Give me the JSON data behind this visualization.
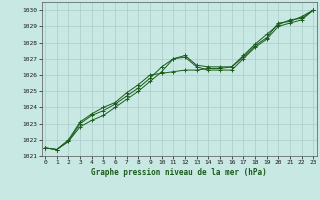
{
  "title": "Graphe pression niveau de la mer (hPa)",
  "background_color": "#c8e8e4",
  "plot_bg_color": "#c8e8e4",
  "grid_color": "#aaccc8",
  "line_color": "#1a5c1a",
  "marker_color": "#1a5c1a",
  "ylim": [
    1021,
    1030.5
  ],
  "xlim": [
    -0.3,
    23.3
  ],
  "yticks": [
    1021,
    1022,
    1023,
    1024,
    1025,
    1026,
    1027,
    1028,
    1029,
    1030
  ],
  "xticks": [
    0,
    1,
    2,
    3,
    4,
    5,
    6,
    7,
    8,
    9,
    10,
    11,
    12,
    13,
    14,
    15,
    16,
    17,
    18,
    19,
    20,
    21,
    22,
    23
  ],
  "series": [
    [
      1021.5,
      1021.4,
      1021.9,
      1022.8,
      1023.2,
      1023.5,
      1024.0,
      1024.5,
      1025.0,
      1025.6,
      1026.2,
      1027.0,
      1027.1,
      1026.5,
      1026.3,
      1026.3,
      1026.3,
      1027.0,
      1027.7,
      1028.2,
      1029.0,
      1029.2,
      1029.4,
      1030.0
    ],
    [
      1021.5,
      1021.4,
      1021.9,
      1023.0,
      1023.5,
      1023.8,
      1024.2,
      1024.7,
      1025.2,
      1025.8,
      1026.5,
      1027.0,
      1027.2,
      1026.6,
      1026.5,
      1026.5,
      1026.5,
      1027.2,
      1027.9,
      1028.5,
      1029.1,
      1029.4,
      1029.5,
      1030.0
    ],
    [
      1021.5,
      1021.4,
      1022.0,
      1023.1,
      1023.6,
      1024.0,
      1024.3,
      1024.9,
      1025.4,
      1026.0,
      1026.1,
      1026.2,
      1026.3,
      1026.3,
      1026.4,
      1026.4,
      1026.5,
      1027.1,
      1027.8,
      1028.3,
      1029.2,
      1029.3,
      1029.6,
      1030.0
    ]
  ]
}
